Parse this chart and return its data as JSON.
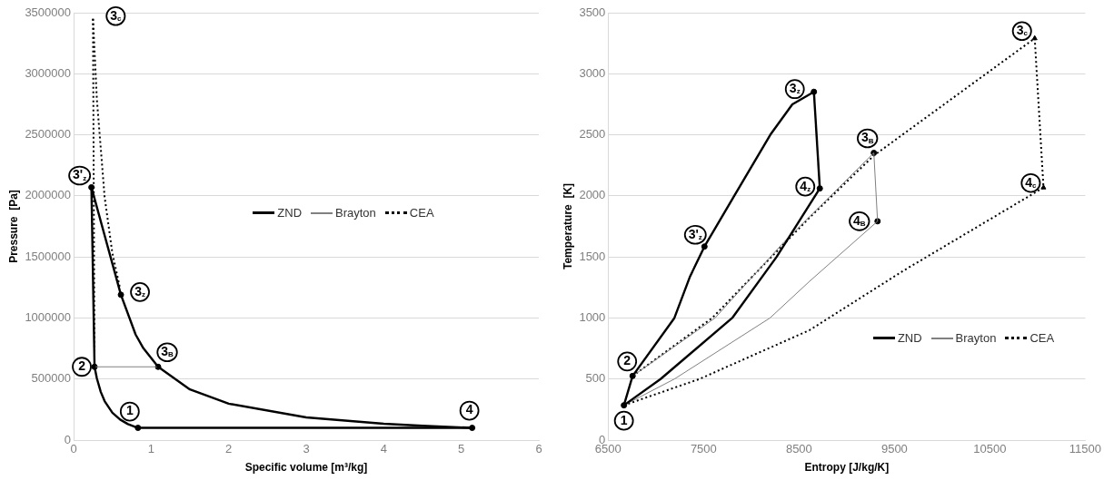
{
  "chart_data": [
    {
      "type": "line",
      "xlabel": "Specific volume [m³/kg]",
      "ylabel": "Pressure  [Pa]",
      "xlim": [
        0,
        6
      ],
      "xticks": [
        0,
        1,
        2,
        3,
        4,
        5,
        6
      ],
      "ylim": [
        0,
        3500000
      ],
      "yticks": [
        0,
        500000,
        1000000,
        1500000,
        2000000,
        2500000,
        3000000,
        3500000
      ],
      "grid": "y",
      "legend": "right",
      "series": [
        {
          "name": "ZND",
          "color": "#000000",
          "line_style": "solid",
          "marker": "none",
          "x": [
            0.23,
            0.61,
            0.8,
            0.9,
            1.09,
            1.5,
            2,
            3,
            4,
            4.5,
            5.14
          ],
          "values": [
            2070000,
            1190000,
            864000,
            752000,
            600000,
            415000,
            298000,
            186000,
            134000,
            117000,
            100000
          ]
        },
        {
          "color": "#000000",
          "line_style": "solid",
          "marker": "none",
          "x": [
            0.27,
            0.3,
            0.35,
            0.4,
            0.5,
            0.6,
            0.7,
            0.83,
            5.14
          ],
          "values": [
            600000,
            505000,
            395000,
            319000,
            224000,
            168000,
            131000,
            100000,
            100000
          ]
        },
        {
          "color": "#000000",
          "line_style": "solid",
          "marker": "none",
          "x": [
            0.23,
            0.27
          ],
          "values": [
            2070000,
            600000
          ]
        },
        {
          "name": "Brayton",
          "color": "#808080",
          "line_style": "solid",
          "marker": "none",
          "x": [
            0.27,
            1.09
          ],
          "values": [
            600000,
            600000
          ]
        },
        {
          "name": "CEA",
          "color": "#000000",
          "line_style": "dotted",
          "marker": "none",
          "x": [
            0.25,
            0.3,
            0.4,
            0.5,
            0.6
          ],
          "values": [
            3450000,
            2790000,
            1990000,
            1530000,
            1240000
          ]
        },
        {
          "color": "#000000",
          "line_style": "dotted",
          "marker": "none",
          "x": [
            0.25,
            0.27
          ],
          "values": [
            3450000,
            600000
          ]
        },
        {
          "color": "#000000",
          "type": "scatter",
          "marker": "circle",
          "x": [
            0.83,
            0.27,
            0.23,
            0.61,
            1.09,
            5.14
          ],
          "values": [
            100000,
            600000,
            2070000,
            1190000,
            600000,
            100000
          ]
        }
      ],
      "annotations": [
        {
          "text": "1",
          "x": 0.83,
          "y": 100000
        },
        {
          "text": "2",
          "x": 0.27,
          "y": 600000
        },
        {
          "text": "3'$_{z}$",
          "x": 0.23,
          "y": 2070000
        },
        {
          "text": "3$_{z}$",
          "x": 0.61,
          "y": 1190000
        },
        {
          "text": "3$_{B}$",
          "x": 1.09,
          "y": 600000
        },
        {
          "text": "4",
          "x": 5.14,
          "y": 100000
        },
        {
          "text": "3$_{c}$",
          "x": 0.25,
          "y": 3450000
        }
      ]
    },
    {
      "type": "line",
      "xlabel": "Entropy [J/kg/K]",
      "ylabel": "Temperature  [K]",
      "xlim": [
        6500,
        11500
      ],
      "xticks": [
        6500,
        7500,
        8500,
        9500,
        10500,
        11500
      ],
      "ylim": [
        0,
        3500
      ],
      "yticks": [
        0,
        500,
        1000,
        1500,
        2000,
        2500,
        3000,
        3500
      ],
      "grid": "y",
      "legend": "bottom right",
      "series": [
        {
          "name": "ZND",
          "color": "#000000",
          "line_style": "solid",
          "marker": "none",
          "x": [
            6665,
            6756,
            7194,
            7358,
            7509,
            7821,
            8199,
            8430,
            8656
          ],
          "values": [
            285,
            525,
            1000,
            1340,
            1585,
            2000,
            2500,
            2750,
            2852
          ]
        },
        {
          "color": "#000000",
          "line_style": "solid",
          "marker": "none",
          "x": [
            8656,
            8718
          ],
          "values": [
            2852,
            2061
          ]
        },
        {
          "color": "#000000",
          "line_style": "solid",
          "marker": "none",
          "x": [
            6665,
            7049,
            7800,
            8265,
            8718
          ],
          "values": [
            285,
            500,
            1000,
            1500,
            2061
          ]
        },
        {
          "name": "Brayton",
          "color": "#808080",
          "line_style": "solid",
          "marker": "none",
          "x": [
            6756,
            7620,
            8340,
            9284
          ],
          "values": [
            525,
            1000,
            1620,
            2352
          ]
        },
        {
          "color": "#808080",
          "line_style": "solid",
          "marker": "none",
          "x": [
            9284,
            9323
          ],
          "values": [
            2352,
            1792
          ]
        },
        {
          "color": "#808080",
          "line_style": "solid",
          "marker": "none",
          "x": [
            6665,
            7194,
            8196,
            8610,
            9323
          ],
          "values": [
            285,
            500,
            1000,
            1300,
            1792
          ]
        },
        {
          "name": "CEA",
          "color": "#000000",
          "line_style": "dotted",
          "marker": "none",
          "x": [
            6756,
            7590,
            8610,
            9284,
            10970
          ],
          "values": [
            525,
            1000,
            1822,
            2330,
            3290
          ]
        },
        {
          "color": "#000000",
          "line_style": "dotted",
          "marker": "none",
          "x": [
            10970,
            11062
          ],
          "values": [
            3290,
            2068
          ]
        },
        {
          "color": "#000000",
          "line_style": "dotted",
          "marker": "none",
          "x": [
            6665,
            7456,
            8610,
            9596,
            11062
          ],
          "values": [
            285,
            500,
            900,
            1388,
            2068
          ]
        },
        {
          "color": "#000000",
          "type": "scatter",
          "marker": "circle",
          "x": [
            6665,
            6756,
            7509,
            8656,
            8718,
            9284,
            9323
          ],
          "values": [
            285,
            525,
            1585,
            2852,
            2061,
            2352,
            1792
          ]
        },
        {
          "color": "#000000",
          "type": "scatter",
          "marker": "triangle",
          "x": [
            10970,
            11062
          ],
          "values": [
            3290,
            2068
          ]
        }
      ],
      "annotations": [
        {
          "text": "1",
          "x": 6665,
          "y": 285
        },
        {
          "text": "2",
          "x": 6756,
          "y": 525
        },
        {
          "text": "3'$_{z}$",
          "x": 7509,
          "y": 1585
        },
        {
          "text": "3$_{z}$",
          "x": 8656,
          "y": 2852
        },
        {
          "text": "4$_{z}$",
          "x": 8718,
          "y": 2061
        },
        {
          "text": "3$_{B}$",
          "x": 9284,
          "y": 2352
        },
        {
          "text": "4$_{B}$",
          "x": 9323,
          "y": 1792
        },
        {
          "text": "3$_{c}$",
          "x": 10970,
          "y": 3290
        },
        {
          "text": "4$_{c}$",
          "x": 11062,
          "y": 2068
        }
      ]
    }
  ]
}
